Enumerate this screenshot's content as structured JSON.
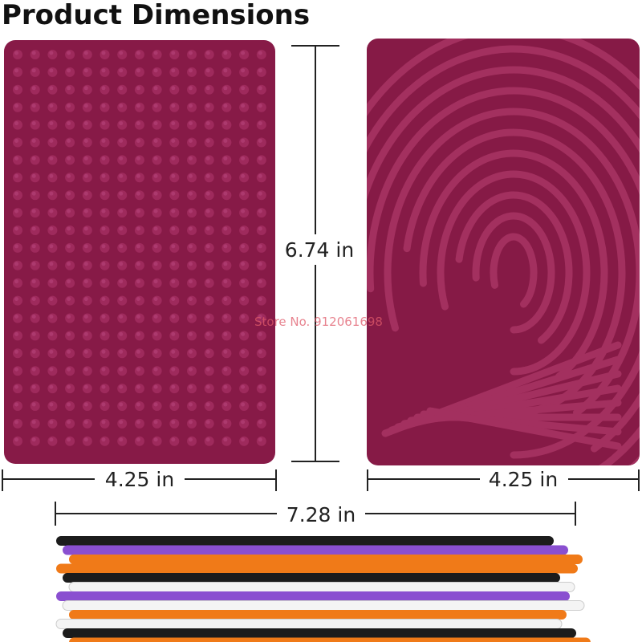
{
  "title": "Product Dimensions",
  "dimensions": {
    "height": "6.74 in",
    "left_width": "4.25 in",
    "right_width": "4.25 in",
    "total_width": "7.28 in"
  },
  "watermark": "Store No. 912061698"
}
